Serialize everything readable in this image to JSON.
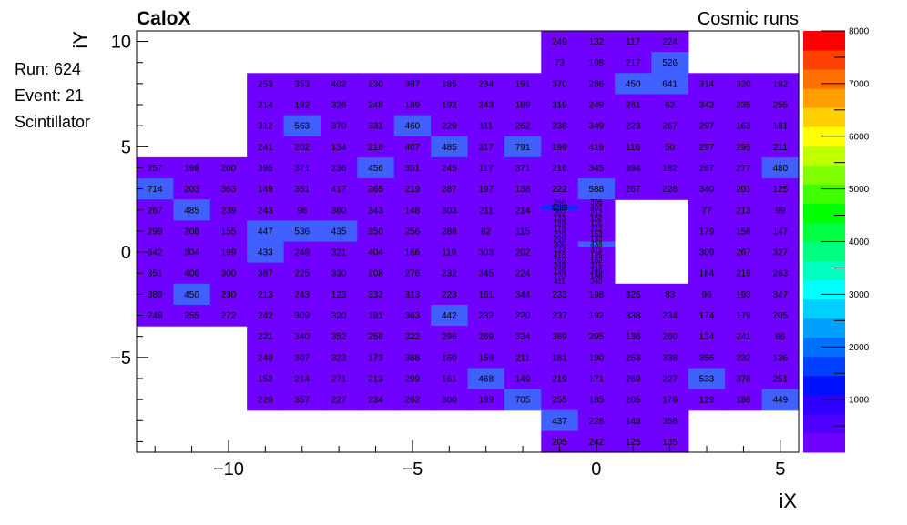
{
  "header": {
    "left_title": "CaloX",
    "right_title": "Cosmic runs"
  },
  "info": {
    "run": "Run: 624",
    "event": "Event: 21",
    "detector": "Scintillator"
  },
  "colors": {
    "low": "#7000ff",
    "mid": "#4060ff",
    "blue": "#1428ff",
    "axis": "#000000",
    "background": "#ffffff"
  },
  "chart_data": {
    "type": "heatmap",
    "xlabel": "iX",
    "ylabel": "iY",
    "xlim": [
      -12.5,
      5.5
    ],
    "ylim": [
      -9.5,
      10.5
    ],
    "xticks": [
      -10,
      -5,
      0,
      5
    ],
    "yticks": [
      -5,
      0,
      5,
      10
    ],
    "xtick_labels": [
      "−10",
      "−5",
      "0",
      "5"
    ],
    "ytick_labels": [
      "−5",
      "0",
      "5",
      "10"
    ],
    "colorbar": {
      "min": 0,
      "max": 8000,
      "ticks": [
        1000,
        2000,
        3000,
        4000,
        5000,
        6000,
        7000,
        8000
      ],
      "tick_labels": [
        "1000",
        "2000",
        "3000",
        "4000",
        "5000",
        "6000",
        "7000",
        "8000"
      ],
      "colors": [
        "#7000ff",
        "#5000ff",
        "#3000ff",
        "#0010ff",
        "#0040ff",
        "#0070ff",
        "#00a0ff",
        "#00d0ff",
        "#00ffff",
        "#00ffc0",
        "#00ff80",
        "#00ff40",
        "#00ff00",
        "#40ff00",
        "#80ff00",
        "#c0ff00",
        "#ffff00",
        "#ffd000",
        "#ffa000",
        "#ff7000",
        "#ff4000",
        "#ff0000"
      ]
    },
    "rows": [
      {
        "iy": 10,
        "ix": [
          -1,
          0,
          1,
          2
        ],
        "values": [
          249,
          132,
          117,
          224
        ]
      },
      {
        "iy": 9,
        "ix": [
          -1,
          0,
          1,
          2
        ],
        "values": [
          73,
          108,
          217,
          526
        ]
      },
      {
        "iy": 8,
        "ix": [
          -9,
          -8,
          -7,
          -6,
          -5,
          -4,
          -3,
          -2,
          -1,
          0,
          1,
          2,
          3,
          4,
          5
        ],
        "values": [
          253,
          353,
          402,
          230,
          387,
          185,
          234,
          191,
          370,
          286,
          450,
          641,
          314,
          320,
          192
        ]
      },
      {
        "iy": 7,
        "ix": [
          -9,
          -8,
          -7,
          -6,
          -5,
          -4,
          -3,
          -2,
          -1,
          0,
          1,
          2,
          3,
          4,
          5
        ],
        "values": [
          214,
          192,
          326,
          248,
          189,
          192,
          243,
          189,
          319,
          249,
          261,
          62,
          342,
          235,
          255
        ]
      },
      {
        "iy": 6,
        "ix": [
          -9,
          -8,
          -7,
          -6,
          -5,
          -4,
          -3,
          -2,
          -1,
          0,
          1,
          2,
          3,
          4,
          5
        ],
        "values": [
          312,
          563,
          370,
          331,
          460,
          229,
          111,
          262,
          238,
          349,
          223,
          267,
          297,
          163,
          181
        ]
      },
      {
        "iy": 5,
        "ix": [
          -9,
          -8,
          -7,
          -6,
          -5,
          -4,
          -3,
          -2,
          -1,
          0,
          1,
          2,
          3,
          4,
          5
        ],
        "values": [
          241,
          202,
          134,
          216,
          407,
          485,
          317,
          791,
          199,
          419,
          116,
          50,
          297,
          295,
          211
        ]
      },
      {
        "iy": 4,
        "ix": [
          -12,
          -11,
          -10,
          -9,
          -8,
          -7,
          -6,
          -5,
          -4,
          -3,
          -2,
          -1,
          0,
          1,
          2,
          3,
          4,
          5
        ],
        "values": [
          257,
          198,
          260,
          395,
          371,
          236,
          456,
          351,
          245,
          117,
          371,
          216,
          345,
          394,
          182,
          267,
          277,
          480
        ]
      },
      {
        "iy": 3,
        "ix": [
          -12,
          -11,
          -10,
          -9,
          -8,
          -7,
          -6,
          -5,
          -4,
          -3,
          -2,
          -1,
          0,
          1,
          2,
          3,
          4,
          5
        ],
        "values": [
          714,
          203,
          363,
          149,
          351,
          417,
          265,
          219,
          287,
          197,
          138,
          222,
          588,
          267,
          228,
          340,
          201,
          125
        ]
      },
      {
        "iy": 2,
        "ix": [
          -12,
          -11,
          -10,
          -9,
          -8,
          -7,
          -6,
          -5,
          -4,
          -3,
          -2,
          3,
          4,
          5
        ],
        "values": [
          267,
          485,
          239,
          243,
          96,
          360,
          343,
          148,
          303,
          211,
          214,
          77,
          213,
          99
        ]
      },
      {
        "iy": 1,
        "ix": [
          -12,
          -11,
          -10,
          -9,
          -8,
          -7,
          -6,
          -5,
          -4,
          -3,
          -2,
          3,
          4,
          5
        ],
        "values": [
          299,
          208,
          155,
          447,
          536,
          435,
          350,
          256,
          288,
          82,
          115,
          179,
          158,
          147
        ]
      },
      {
        "iy": 0,
        "ix": [
          -12,
          -11,
          -10,
          -9,
          -8,
          -7,
          -6,
          -5,
          -4,
          -3,
          -2,
          3,
          4,
          5
        ],
        "values": [
          342,
          304,
          199,
          433,
          249,
          321,
          404,
          166,
          119,
          303,
          202,
          309,
          267,
          327
        ]
      },
      {
        "iy": -1,
        "ix": [
          -12,
          -11,
          -10,
          -9,
          -8,
          -7,
          -6,
          -5,
          -4,
          -3,
          -2,
          3,
          4,
          5
        ],
        "values": [
          351,
          406,
          300,
          387,
          225,
          330,
          208,
          276,
          232,
          345,
          224,
          184,
          219,
          263
        ]
      },
      {
        "iy": -2,
        "ix": [
          -12,
          -11,
          -10,
          -9,
          -8,
          -7,
          -6,
          -5,
          -4,
          -3,
          -2,
          -1,
          0,
          1,
          2,
          3,
          4,
          5
        ],
        "values": [
          389,
          450,
          230,
          213,
          243,
          123,
          332,
          313,
          223,
          161,
          344,
          233,
          198,
          326,
          83,
          96,
          193,
          347
        ]
      },
      {
        "iy": -3,
        "ix": [
          -12,
          -11,
          -10,
          -9,
          -8,
          -7,
          -6,
          -5,
          -4,
          -3,
          -2,
          -1,
          0,
          1,
          2,
          3,
          4,
          5
        ],
        "values": [
          248,
          255,
          272,
          242,
          309,
          320,
          181,
          363,
          442,
          232,
          220,
          237,
          192,
          338,
          234,
          174,
          179,
          205
        ]
      },
      {
        "iy": -4,
        "ix": [
          -9,
          -8,
          -7,
          -6,
          -5,
          -4,
          -3,
          -2,
          -1,
          0,
          1,
          2,
          3,
          4,
          5
        ],
        "values": [
          221,
          340,
          352,
          258,
          222,
          296,
          269,
          334,
          389,
          295,
          136,
          260,
          134,
          241,
          86
        ]
      },
      {
        "iy": -5,
        "ix": [
          -9,
          -8,
          -7,
          -6,
          -5,
          -4,
          -3,
          -2,
          -1,
          0,
          1,
          2,
          3,
          4,
          5
        ],
        "values": [
          240,
          307,
          323,
          173,
          388,
          160,
          159,
          211,
          181,
          190,
          253,
          338,
          356,
          232,
          136
        ]
      },
      {
        "iy": -6,
        "ix": [
          -9,
          -8,
          -7,
          -6,
          -5,
          -4,
          -3,
          -2,
          -1,
          0,
          1,
          2,
          3,
          4,
          5
        ],
        "values": [
          152,
          214,
          271,
          213,
          299,
          161,
          468,
          149,
          219,
          171,
          269,
          227,
          533,
          378,
          251
        ]
      },
      {
        "iy": -7,
        "ix": [
          -9,
          -8,
          -7,
          -6,
          -5,
          -4,
          -3,
          -2,
          -1,
          0,
          1,
          2,
          3,
          4,
          5
        ],
        "values": [
          220,
          357,
          227,
          234,
          262,
          300,
          199,
          705,
          255,
          185,
          205,
          176,
          129,
          186,
          449
        ]
      },
      {
        "iy": -8,
        "ix": [
          -1,
          0,
          1,
          2
        ],
        "values": [
          437,
          228,
          148,
          358
        ]
      },
      {
        "iy": -9,
        "ix": [
          -1,
          0,
          1,
          2
        ],
        "values": [
          205,
          242,
          125,
          135
        ]
      }
    ],
    "fine_grid": {
      "ix_range": [
        -1.5,
        0.5
      ],
      "iy_range": [
        -1.5,
        2.5
      ],
      "columns": 2,
      "rows": 16,
      "values": [
        [
          266,
          306
        ],
        [
          1289,
          407
        ],
        [
          202,
          212
        ],
        [
          133,
          162
        ],
        [
          189,
          115
        ],
        [
          176,
          222
        ],
        [
          229,
          153
        ],
        [
          299,
          132
        ],
        [
          305,
          436
        ],
        [
          133,
          375
        ],
        [
          416,
          125
        ],
        [
          169,
          162
        ],
        [
          248,
          315
        ],
        [
          196,
          246
        ],
        [
          220,
          186
        ],
        [
          411,
          240
        ]
      ]
    },
    "empty_region": {
      "ix_range": [
        0.5,
        2.5
      ],
      "iy_range": [
        -1.5,
        2.5
      ]
    }
  }
}
